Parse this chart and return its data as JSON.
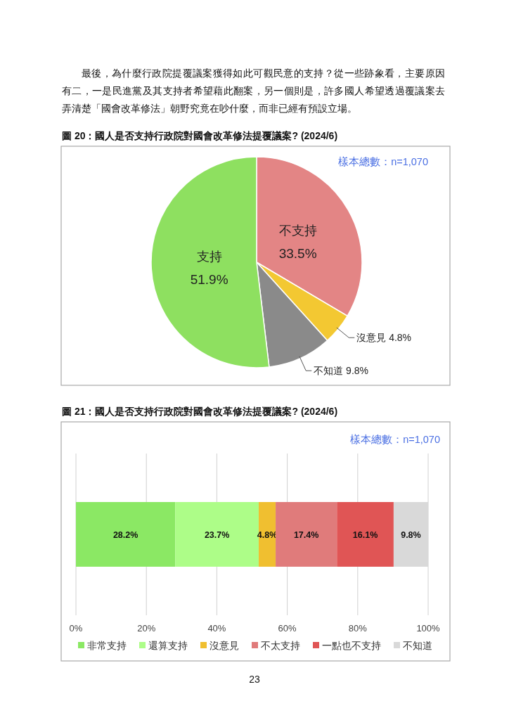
{
  "chart_data": [
    {
      "type": "pie",
      "title": "圖 20：國人是否支持行政院對國會改革修法提覆議案? (2024/6)",
      "categories": [
        "不支持",
        "沒意見",
        "不知道",
        "支持"
      ],
      "values": [
        33.5,
        4.8,
        9.8,
        51.9
      ],
      "colors": [
        "#e38585",
        "#f3c832",
        "#8a8a8a",
        "#8ee060"
      ],
      "value_labels": [
        "33.5%",
        "4.8%",
        "9.8%",
        "51.9%"
      ],
      "annotations": [
        "最後，為什麼行政院提覆議案獲得如此可觀民意的支持？從一些跡象看，主要原因有二，一是民進黨及其支持者希望藉此翻案，另一個則是，許多國人希望透過覆議案去弄清楚「國會改革修法」朝野究竟在吵什麼，而非已經有預設立場。",
        "樣本總數：n=1,070"
      ]
    },
    {
      "type": "bar",
      "orientation": "horizontal",
      "stacked": true,
      "title": "圖 21：國人是否支持行政院對國會改革修法提覆議案? (2024/6)",
      "categories": [
        null
      ],
      "series": [
        {
          "name": "非常支持",
          "color": "#8be864",
          "values": [
            28.2
          ],
          "value_labels": [
            "28.2%"
          ]
        },
        {
          "name": "還算支持",
          "color": "#adfd88",
          "values": [
            23.7
          ],
          "value_labels": [
            "23.7%"
          ]
        },
        {
          "name": "沒意見",
          "color": "#f0bf30",
          "values": [
            4.8
          ],
          "value_labels": [
            "4.8%"
          ]
        },
        {
          "name": "不太支持",
          "color": "#e07b7b",
          "values": [
            17.4
          ],
          "value_labels": [
            "17.4%"
          ]
        },
        {
          "name": "一點也不支持",
          "color": "#e05555",
          "values": [
            16.1
          ],
          "value_labels": [
            "16.1%"
          ]
        },
        {
          "name": "不知道",
          "color": "#d9d9d9",
          "values": [
            9.8
          ],
          "value_labels": [
            "9.8%"
          ]
        }
      ],
      "xlim": [
        0,
        100
      ],
      "xticks": [
        {
          "value": 0,
          "label": "0%"
        },
        {
          "value": 20,
          "label": "20%"
        },
        {
          "value": 40,
          "label": "40%"
        },
        {
          "value": 60,
          "label": "60%"
        },
        {
          "value": 80,
          "label": "80%"
        },
        {
          "value": 100,
          "label": "100%"
        }
      ],
      "grid": "x",
      "legend": "bottom",
      "annotations": [
        "樣本總數：n=1,070",
        "23"
      ]
    }
  ]
}
